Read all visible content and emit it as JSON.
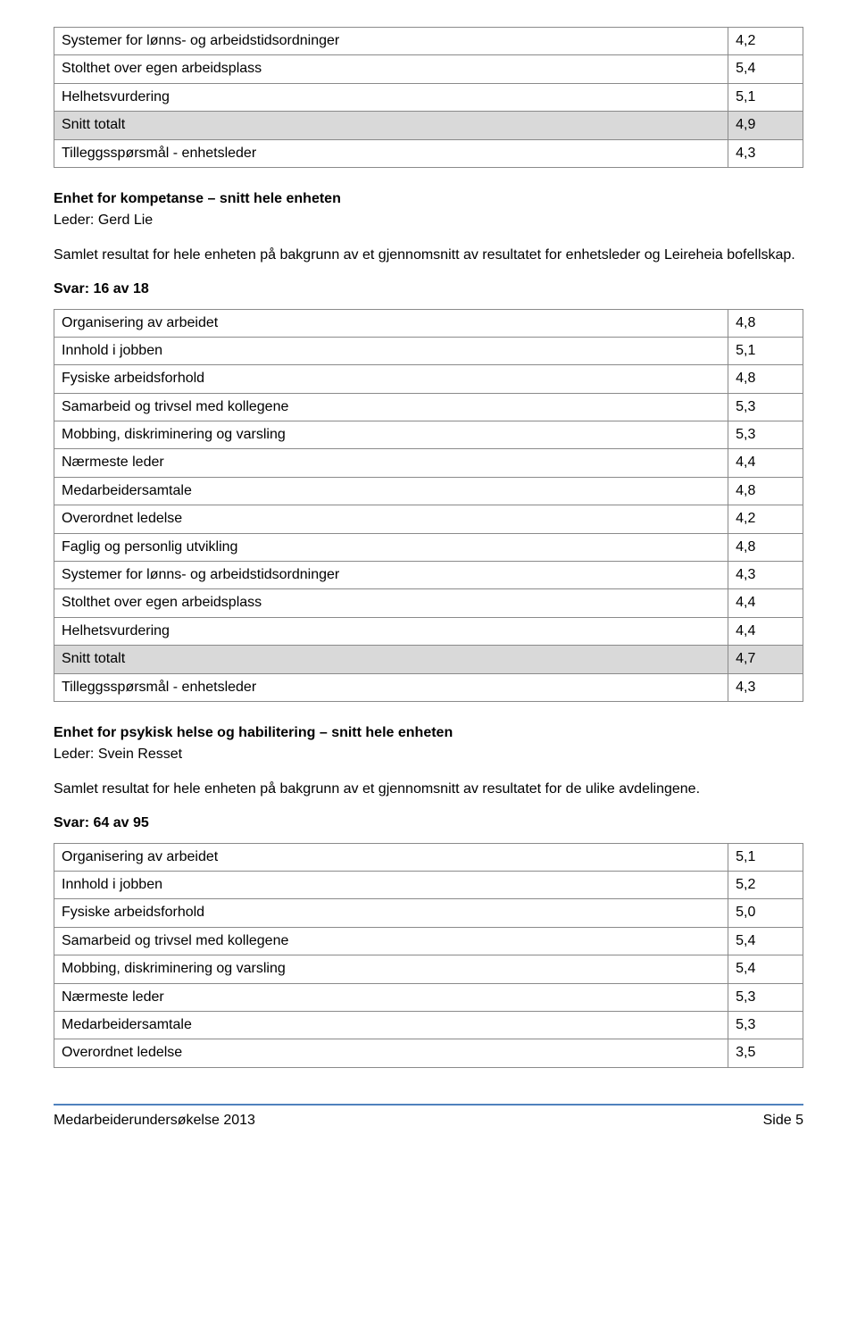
{
  "colors": {
    "border": "#8a8a8a",
    "shade": "#d9d9d9",
    "accent": "#4f81bd",
    "text": "#000000",
    "background": "#ffffff"
  },
  "table1": {
    "rows": [
      {
        "label": "Systemer for lønns- og arbeidstidsordninger",
        "value": "4,2",
        "shaded": false
      },
      {
        "label": "Stolthet over egen arbeidsplass",
        "value": "5,4",
        "shaded": false
      },
      {
        "label": "Helhetsvurdering",
        "value": "5,1",
        "shaded": false
      },
      {
        "label": "Snitt totalt",
        "value": "4,9",
        "shaded": true
      },
      {
        "label": "Tilleggsspørsmål - enhetsleder",
        "value": "4,3",
        "shaded": false
      }
    ]
  },
  "section2": {
    "heading": "Enhet for kompetanse – snitt hele enheten",
    "leader": "Leder: Gerd Lie",
    "intro": "Samlet resultat for hele enheten på bakgrunn av et gjennomsnitt av resultatet for enhetsleder og Leireheia bofellskap.",
    "svar": "Svar: 16 av 18",
    "rows": [
      {
        "label": "Organisering av arbeidet",
        "value": "4,8",
        "shaded": false
      },
      {
        "label": "Innhold i jobben",
        "value": "5,1",
        "shaded": false
      },
      {
        "label": "Fysiske arbeidsforhold",
        "value": "4,8",
        "shaded": false
      },
      {
        "label": "Samarbeid og trivsel med kollegene",
        "value": "5,3",
        "shaded": false
      },
      {
        "label": "Mobbing, diskriminering og varsling",
        "value": "5,3",
        "shaded": false
      },
      {
        "label": "Nærmeste leder",
        "value": "4,4",
        "shaded": false
      },
      {
        "label": "Medarbeidersamtale",
        "value": "4,8",
        "shaded": false
      },
      {
        "label": "Overordnet ledelse",
        "value": "4,2",
        "shaded": false
      },
      {
        "label": "Faglig og personlig utvikling",
        "value": "4,8",
        "shaded": false
      },
      {
        "label": "Systemer for lønns- og arbeidstidsordninger",
        "value": "4,3",
        "shaded": false
      },
      {
        "label": "Stolthet over egen arbeidsplass",
        "value": "4,4",
        "shaded": false
      },
      {
        "label": "Helhetsvurdering",
        "value": "4,4",
        "shaded": false
      },
      {
        "label": "Snitt totalt",
        "value": "4,7",
        "shaded": true
      },
      {
        "label": "Tilleggsspørsmål - enhetsleder",
        "value": "4,3",
        "shaded": false
      }
    ]
  },
  "section3": {
    "heading": "Enhet for psykisk helse og habilitering – snitt hele enheten",
    "leader": "Leder: Svein Resset",
    "intro": "Samlet resultat for hele enheten på bakgrunn av et gjennomsnitt av resultatet for de ulike avdelingene.",
    "svar": "Svar: 64 av 95",
    "rows": [
      {
        "label": "Organisering av arbeidet",
        "value": "5,1",
        "shaded": false
      },
      {
        "label": "Innhold i jobben",
        "value": "5,2",
        "shaded": false
      },
      {
        "label": "Fysiske arbeidsforhold",
        "value": "5,0",
        "shaded": false
      },
      {
        "label": "Samarbeid og trivsel med kollegene",
        "value": "5,4",
        "shaded": false
      },
      {
        "label": "Mobbing, diskriminering og varsling",
        "value": "5,4",
        "shaded": false
      },
      {
        "label": "Nærmeste leder",
        "value": "5,3",
        "shaded": false
      },
      {
        "label": "Medarbeidersamtale",
        "value": "5,3",
        "shaded": false
      },
      {
        "label": "Overordnet ledelse",
        "value": "3,5",
        "shaded": false
      }
    ]
  },
  "footer": {
    "left": "Medarbeiderundersøkelse 2013",
    "right": "Side 5"
  }
}
